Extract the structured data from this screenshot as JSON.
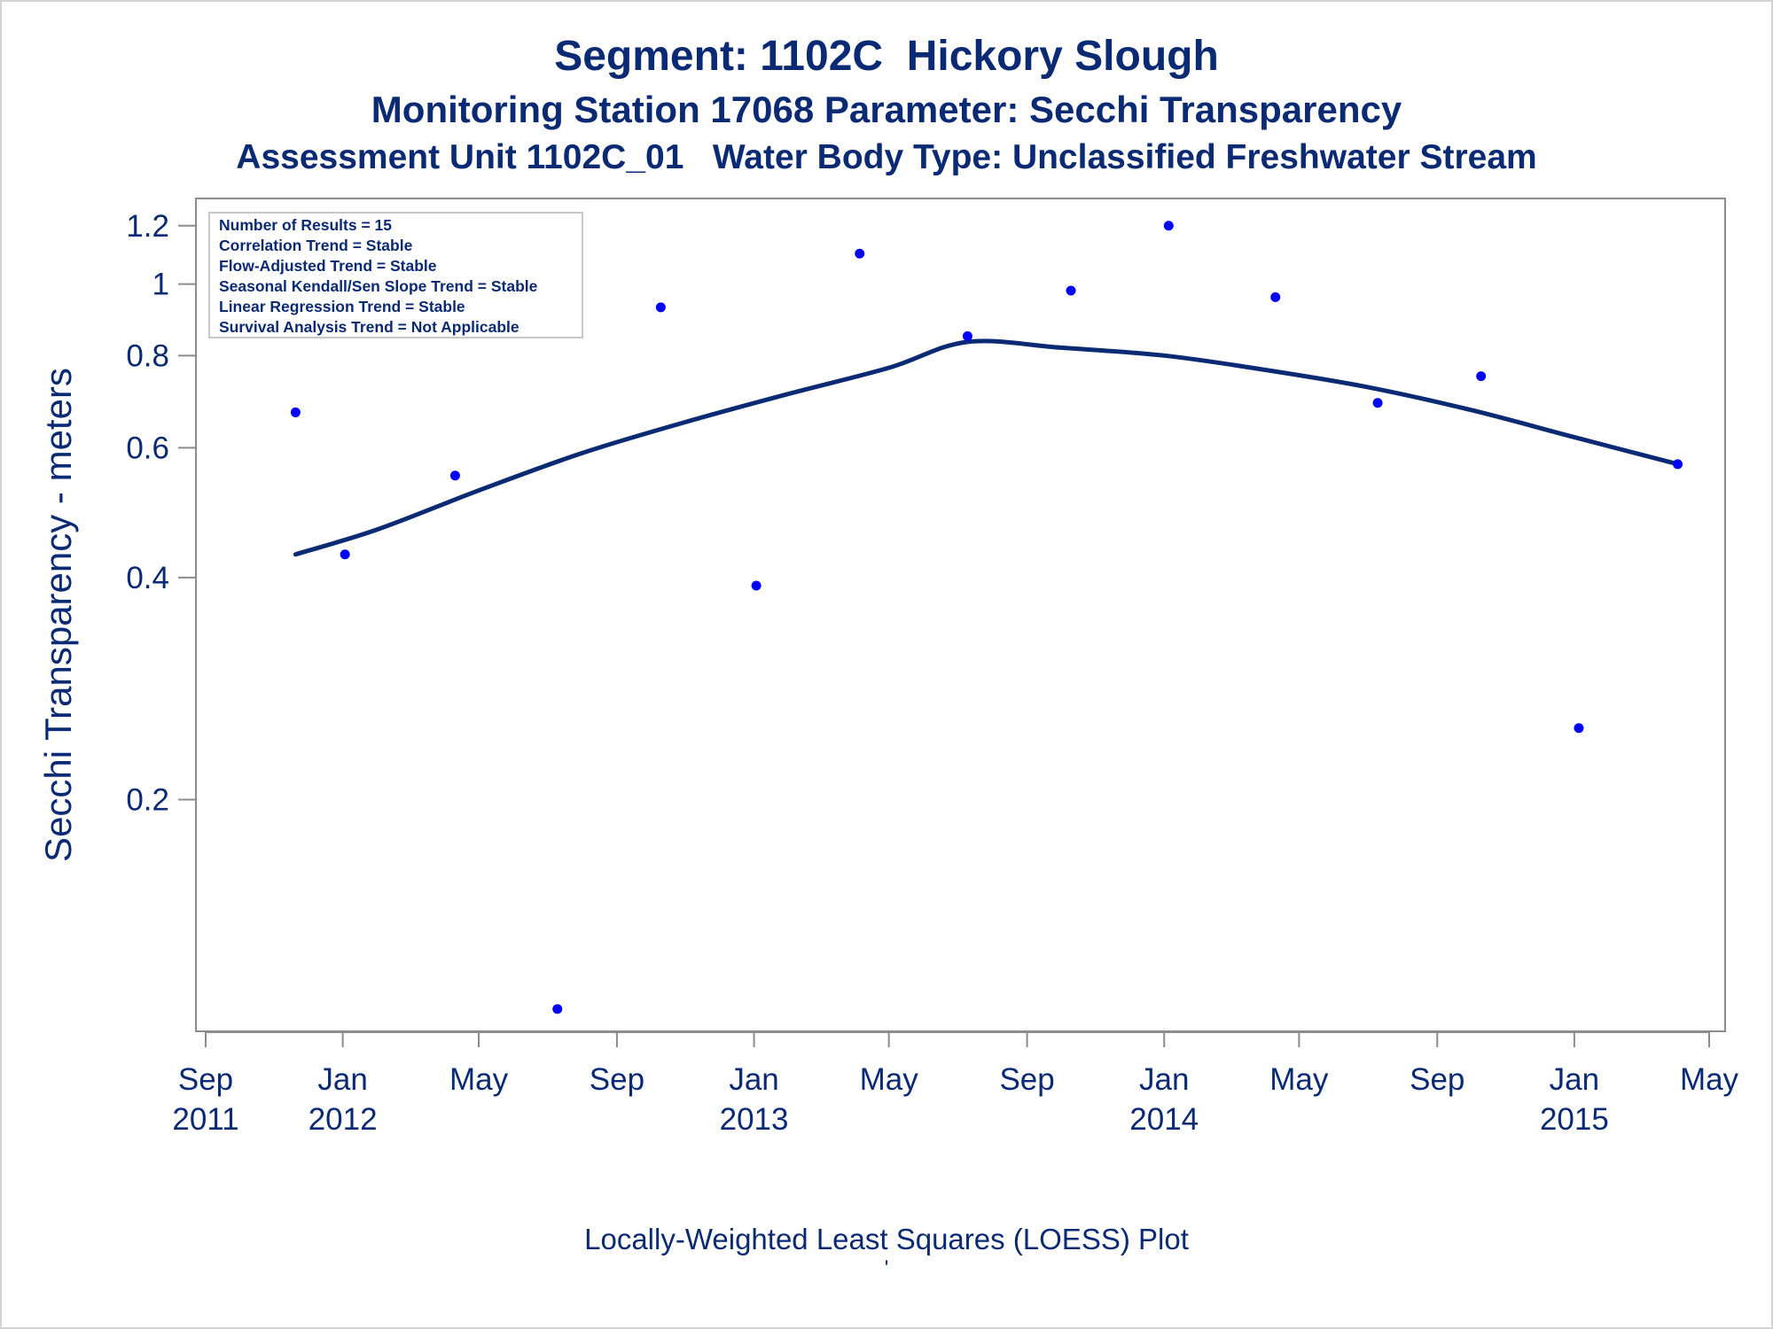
{
  "chart_data": {
    "type": "scatter",
    "title": "Segment: 1102C  Hickory Slough",
    "subtitle": "Monitoring Station 17068 Parameter: Secchi Transparency",
    "subtitle2": "Assessment Unit 1102C_01   Water Body Type: Unclassified Freshwater Stream",
    "ylabel": "Secchi Transparency - meters",
    "xlabel": "",
    "yscale": "log",
    "ylim": [
      0.1,
      1.25
    ],
    "xlim": [
      "2011-09-01",
      "2015-05-01"
    ],
    "y_ticks": [
      {
        "value": 0.2,
        "label": "0.2"
      },
      {
        "value": 0.4,
        "label": "0.4"
      },
      {
        "value": 0.6,
        "label": "0.6"
      },
      {
        "value": 0.8,
        "label": "0.8"
      },
      {
        "value": 1.0,
        "label": "1"
      },
      {
        "value": 1.2,
        "label": "1.2"
      }
    ],
    "x_ticks": [
      {
        "date": "2011-09-01",
        "label": "Sep",
        "year": "2011"
      },
      {
        "date": "2012-01-01",
        "label": "Jan",
        "year": "2012"
      },
      {
        "date": "2012-05-01",
        "label": "May",
        "year": ""
      },
      {
        "date": "2012-09-01",
        "label": "Sep",
        "year": ""
      },
      {
        "date": "2013-01-01",
        "label": "Jan",
        "year": "2013"
      },
      {
        "date": "2013-05-01",
        "label": "May",
        "year": ""
      },
      {
        "date": "2013-09-01",
        "label": "Sep",
        "year": ""
      },
      {
        "date": "2014-01-01",
        "label": "Jan",
        "year": "2014"
      },
      {
        "date": "2014-05-01",
        "label": "May",
        "year": ""
      },
      {
        "date": "2014-09-01",
        "label": "Sep",
        "year": ""
      },
      {
        "date": "2015-01-01",
        "label": "Jan",
        "year": "2015"
      },
      {
        "date": "2015-05-01",
        "label": "May",
        "year": ""
      }
    ],
    "points": [
      {
        "x": "2011-11-20",
        "y": 0.67
      },
      {
        "x": "2012-01-03",
        "y": 0.43
      },
      {
        "x": "2012-04-10",
        "y": 0.55
      },
      {
        "x": "2012-07-10",
        "y": 0.104
      },
      {
        "x": "2012-10-10",
        "y": 0.93
      },
      {
        "x": "2013-01-03",
        "y": 0.39
      },
      {
        "x": "2013-04-05",
        "y": 1.1
      },
      {
        "x": "2013-07-10",
        "y": 0.85
      },
      {
        "x": "2013-10-10",
        "y": 0.98
      },
      {
        "x": "2014-01-05",
        "y": 1.2
      },
      {
        "x": "2014-04-10",
        "y": 0.96
      },
      {
        "x": "2014-07-10",
        "y": 0.69
      },
      {
        "x": "2014-10-10",
        "y": 0.75
      },
      {
        "x": "2015-01-05",
        "y": 0.25
      },
      {
        "x": "2015-04-03",
        "y": 0.57
      }
    ],
    "loess_curve": [
      {
        "x": "2011-11-20",
        "y": 0.43
      },
      {
        "x": "2012-02-01",
        "y": 0.465
      },
      {
        "x": "2012-05-01",
        "y": 0.525
      },
      {
        "x": "2012-08-01",
        "y": 0.59
      },
      {
        "x": "2012-11-01",
        "y": 0.65
      },
      {
        "x": "2013-02-01",
        "y": 0.71
      },
      {
        "x": "2013-05-01",
        "y": 0.77
      },
      {
        "x": "2013-07-10",
        "y": 0.835
      },
      {
        "x": "2013-10-01",
        "y": 0.82
      },
      {
        "x": "2014-01-01",
        "y": 0.8
      },
      {
        "x": "2014-04-01",
        "y": 0.765
      },
      {
        "x": "2014-07-01",
        "y": 0.725
      },
      {
        "x": "2014-10-01",
        "y": 0.675
      },
      {
        "x": "2015-01-01",
        "y": 0.62
      },
      {
        "x": "2015-04-03",
        "y": 0.57
      }
    ],
    "legend": {
      "placement": "top-left",
      "lines": [
        "Number of Results = 15",
        "Correlation Trend = Stable",
        "Flow-Adjusted Trend = Stable",
        "Seasonal Kendall/Sen Slope Trend = Stable",
        "Linear Regression Trend = Stable",
        "Survival Analysis Trend = Not Applicable"
      ]
    },
    "footnote": "Locally-Weighted Least Squares (LOESS) Plot",
    "footnote2": "'",
    "colors": {
      "text": "#0b2a74",
      "points": "#0000ff",
      "curve": "#0b2a74",
      "axis": "#8c8c8c"
    }
  }
}
